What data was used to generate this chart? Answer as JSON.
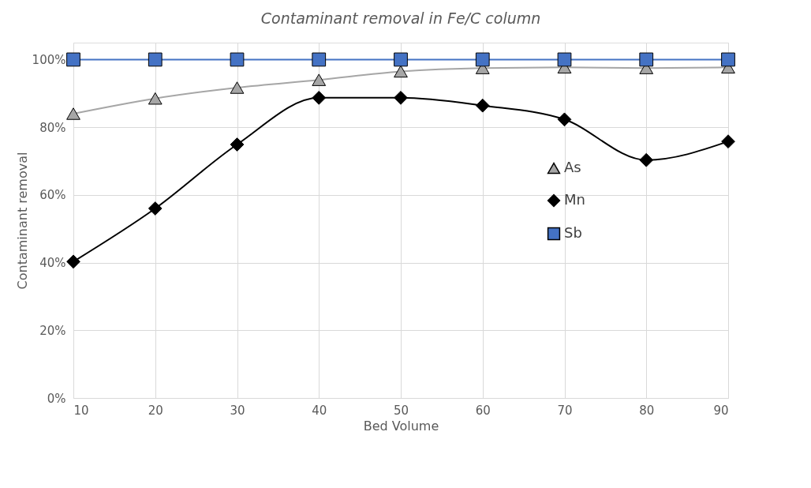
{
  "chart_data": {
    "type": "line",
    "title": "Contaminant removal in Fe/C column",
    "xlabel": "Bed Volume",
    "ylabel": "Contaminant removal",
    "x": [
      10,
      20,
      30,
      40,
      50,
      60,
      70,
      80,
      90
    ],
    "xlim": [
      10,
      90
    ],
    "xticks": [
      10,
      20,
      30,
      40,
      50,
      60,
      70,
      80,
      90
    ],
    "ylim": [
      0,
      105
    ],
    "yticks": [
      {
        "value": 0,
        "label": "0%"
      },
      {
        "value": 20,
        "label": "20%"
      },
      {
        "value": 40,
        "label": "40%"
      },
      {
        "value": 60,
        "label": "60%"
      },
      {
        "value": 80,
        "label": "80%"
      },
      {
        "value": 100,
        "label": "100%"
      }
    ],
    "grid": true,
    "legend": "right",
    "line_style": "solid",
    "series": [
      {
        "name": "As",
        "color": "#a6a6a6",
        "marker": "triangle",
        "values": [
          84,
          88.5,
          91.7,
          94,
          96.5,
          97.5,
          97.7,
          97.5,
          97.7
        ]
      },
      {
        "name": "Mn",
        "color": "#000000",
        "marker": "diamond",
        "values": [
          40.3,
          56,
          74.9,
          88.7,
          88.7,
          86.4,
          82.3,
          70.3,
          75.8
        ]
      },
      {
        "name": "Sb",
        "color": "#4472c4",
        "marker": "square",
        "values": [
          100,
          100,
          100,
          100,
          100,
          100,
          100,
          100,
          100
        ]
      }
    ]
  }
}
